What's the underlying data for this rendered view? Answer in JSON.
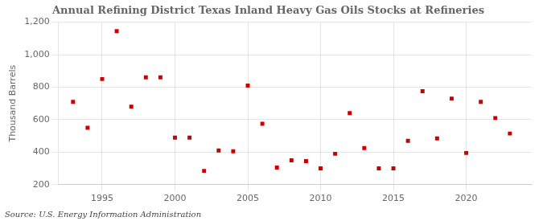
{
  "chart_data": {
    "type": "scatter",
    "title": "Annual Refining District Texas Inland Heavy Gas Oils Stocks at Refineries",
    "ylabel": "Thousand Barrels",
    "annotations": [
      "Source: U.S. Energy Information Administration"
    ],
    "x": [
      1993,
      1994,
      1995,
      1996,
      1997,
      1998,
      1999,
      2000,
      2001,
      2002,
      2003,
      2004,
      2005,
      2006,
      2007,
      2008,
      2009,
      2010,
      2011,
      2012,
      2013,
      2014,
      2015,
      2016,
      2017,
      2018,
      2019,
      2020,
      2021,
      2022,
      2023
    ],
    "values": [
      710,
      550,
      850,
      1145,
      680,
      860,
      860,
      490,
      490,
      285,
      410,
      405,
      810,
      575,
      305,
      350,
      345,
      300,
      390,
      640,
      425,
      300,
      300,
      470,
      775,
      485,
      730,
      395,
      710,
      610,
      515
    ],
    "color": "#cc0000",
    "marker": "square",
    "xlim": [
      1992,
      2024.5
    ],
    "xticks": [
      1995,
      2000,
      2005,
      2010,
      2015,
      2020
    ],
    "ylim": [
      200,
      1200
    ],
    "yticks": [
      200,
      400,
      600,
      800,
      {
        "value": 1000,
        "label": "1,000"
      },
      {
        "value": 1200,
        "label": "1,200"
      }
    ],
    "grid": true
  }
}
